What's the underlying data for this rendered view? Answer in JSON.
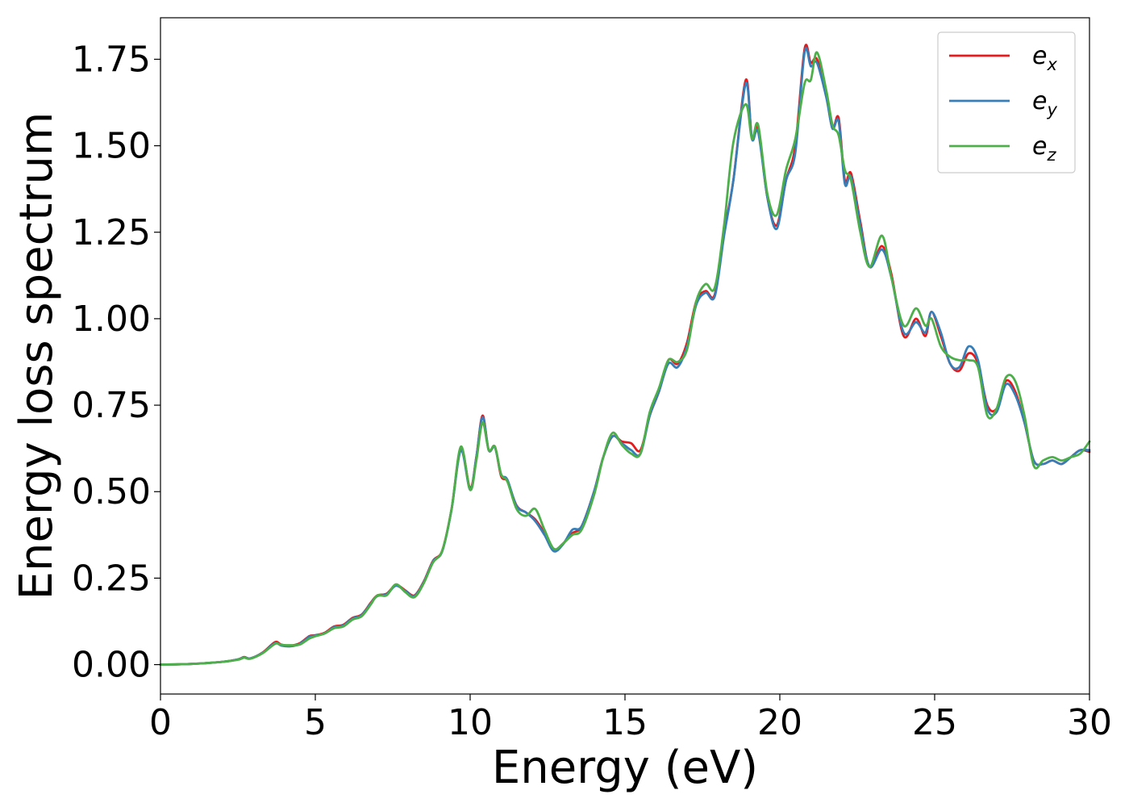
{
  "chart_data": {
    "type": "line",
    "title": "",
    "xlabel": "Energy (eV)",
    "ylabel": "Energy loss spectrum",
    "xlim": [
      0,
      30
    ],
    "ylim": [
      -0.085,
      1.87
    ],
    "xticks": [
      0,
      5,
      10,
      15,
      20,
      25,
      30
    ],
    "xtick_labels": [
      "0",
      "5",
      "10",
      "15",
      "20",
      "25",
      "30"
    ],
    "yticks": [
      0,
      0.25,
      0.5,
      0.75,
      1.0,
      1.25,
      1.5,
      1.75
    ],
    "ytick_labels": [
      "0.00",
      "0.25",
      "0.50",
      "0.75",
      "1.00",
      "1.25",
      "1.50",
      "1.75"
    ],
    "grid": false,
    "legend_position": "top-right",
    "series": [
      {
        "name": "e_x",
        "label_base": "e",
        "label_sub": "x",
        "color": "#e41a1c",
        "x": [
          0,
          1,
          2,
          2.5,
          2.7,
          2.9,
          3.3,
          3.7,
          3.9,
          4.2,
          4.5,
          4.8,
          5.0,
          5.3,
          5.6,
          5.9,
          6.2,
          6.5,
          6.8,
          7.0,
          7.3,
          7.6,
          7.9,
          8.2,
          8.5,
          8.8,
          9.1,
          9.4,
          9.7,
          10.0,
          10.2,
          10.4,
          10.6,
          10.8,
          11.0,
          11.2,
          11.5,
          11.8,
          12.1,
          12.4,
          12.7,
          13.0,
          13.3,
          13.6,
          14.0,
          14.3,
          14.6,
          14.9,
          15.2,
          15.5,
          15.8,
          16.1,
          16.4,
          16.7,
          17.0,
          17.3,
          17.6,
          17.9,
          18.2,
          18.5,
          18.9,
          19.1,
          19.3,
          19.6,
          19.9,
          20.2,
          20.5,
          20.8,
          21.0,
          21.2,
          21.5,
          21.7,
          21.9,
          22.1,
          22.3,
          22.6,
          22.9,
          23.3,
          23.6,
          24.0,
          24.4,
          24.7,
          24.9,
          25.2,
          25.5,
          25.8,
          26.1,
          26.4,
          26.7,
          27.0,
          27.3,
          27.6,
          27.9,
          28.2,
          28.5,
          28.8,
          29.1,
          29.4,
          29.7,
          30.0
        ],
        "values": [
          0.0,
          0.002,
          0.008,
          0.015,
          0.022,
          0.018,
          0.035,
          0.065,
          0.058,
          0.055,
          0.062,
          0.082,
          0.085,
          0.092,
          0.11,
          0.115,
          0.135,
          0.145,
          0.18,
          0.2,
          0.205,
          0.23,
          0.215,
          0.2,
          0.24,
          0.3,
          0.33,
          0.45,
          0.625,
          0.51,
          0.6,
          0.72,
          0.62,
          0.63,
          0.545,
          0.53,
          0.46,
          0.44,
          0.42,
          0.38,
          0.33,
          0.35,
          0.38,
          0.4,
          0.5,
          0.6,
          0.66,
          0.645,
          0.64,
          0.62,
          0.72,
          0.79,
          0.88,
          0.87,
          0.93,
          1.05,
          1.08,
          1.07,
          1.25,
          1.4,
          1.69,
          1.52,
          1.55,
          1.35,
          1.27,
          1.4,
          1.5,
          1.78,
          1.74,
          1.75,
          1.65,
          1.55,
          1.58,
          1.4,
          1.42,
          1.28,
          1.15,
          1.21,
          1.13,
          0.95,
          1.0,
          0.95,
          1.02,
          0.95,
          0.87,
          0.85,
          0.9,
          0.87,
          0.75,
          0.74,
          0.82,
          0.79,
          0.7,
          0.59,
          0.58,
          0.59,
          0.58,
          0.6,
          0.62,
          0.615
        ]
      },
      {
        "name": "e_y",
        "label_base": "e",
        "label_sub": "y",
        "color": "#377eb8",
        "x": [
          0,
          1,
          2,
          2.5,
          2.7,
          2.9,
          3.3,
          3.7,
          3.9,
          4.2,
          4.5,
          4.8,
          5.0,
          5.3,
          5.6,
          5.9,
          6.2,
          6.5,
          6.8,
          7.0,
          7.3,
          7.6,
          7.9,
          8.2,
          8.5,
          8.8,
          9.1,
          9.4,
          9.7,
          10.0,
          10.2,
          10.4,
          10.6,
          10.8,
          11.0,
          11.2,
          11.5,
          11.8,
          12.1,
          12.4,
          12.7,
          13.0,
          13.3,
          13.6,
          14.0,
          14.3,
          14.6,
          14.9,
          15.2,
          15.5,
          15.8,
          16.1,
          16.4,
          16.7,
          17.0,
          17.3,
          17.6,
          17.9,
          18.2,
          18.5,
          18.9,
          19.1,
          19.3,
          19.6,
          19.9,
          20.2,
          20.5,
          20.8,
          21.0,
          21.2,
          21.5,
          21.7,
          21.9,
          22.1,
          22.3,
          22.6,
          22.9,
          23.3,
          23.6,
          24.0,
          24.4,
          24.7,
          24.9,
          25.2,
          25.5,
          25.8,
          26.1,
          26.4,
          26.7,
          27.0,
          27.3,
          27.6,
          27.9,
          28.2,
          28.5,
          28.8,
          29.1,
          29.4,
          29.7,
          30.0
        ],
        "values": [
          0.0,
          0.002,
          0.008,
          0.015,
          0.021,
          0.018,
          0.034,
          0.062,
          0.055,
          0.053,
          0.06,
          0.08,
          0.084,
          0.09,
          0.108,
          0.113,
          0.133,
          0.143,
          0.178,
          0.198,
          0.203,
          0.228,
          0.213,
          0.198,
          0.238,
          0.298,
          0.328,
          0.448,
          0.62,
          0.505,
          0.6,
          0.715,
          0.62,
          0.628,
          0.55,
          0.535,
          0.458,
          0.44,
          0.415,
          0.375,
          0.328,
          0.348,
          0.39,
          0.4,
          0.5,
          0.6,
          0.66,
          0.64,
          0.62,
          0.61,
          0.72,
          0.79,
          0.87,
          0.86,
          0.92,
          1.04,
          1.075,
          1.065,
          1.24,
          1.4,
          1.68,
          1.52,
          1.54,
          1.35,
          1.26,
          1.4,
          1.48,
          1.77,
          1.73,
          1.74,
          1.64,
          1.55,
          1.57,
          1.39,
          1.41,
          1.27,
          1.15,
          1.2,
          1.12,
          0.96,
          0.99,
          0.96,
          1.02,
          0.96,
          0.87,
          0.86,
          0.92,
          0.88,
          0.74,
          0.73,
          0.81,
          0.78,
          0.7,
          0.59,
          0.58,
          0.59,
          0.58,
          0.6,
          0.62,
          0.62
        ]
      },
      {
        "name": "e_z",
        "label_base": "e",
        "label_sub": "z",
        "color": "#4daf4a",
        "x": [
          0,
          1,
          2,
          2.5,
          2.7,
          2.9,
          3.3,
          3.7,
          3.9,
          4.2,
          4.5,
          4.8,
          5.0,
          5.3,
          5.6,
          5.9,
          6.2,
          6.5,
          6.8,
          7.0,
          7.3,
          7.6,
          7.9,
          8.2,
          8.5,
          8.8,
          9.1,
          9.4,
          9.7,
          10.0,
          10.2,
          10.4,
          10.6,
          10.8,
          11.0,
          11.2,
          11.5,
          11.8,
          12.1,
          12.4,
          12.7,
          13.0,
          13.3,
          13.6,
          14.0,
          14.3,
          14.6,
          14.9,
          15.2,
          15.5,
          15.8,
          16.1,
          16.4,
          16.7,
          17.0,
          17.3,
          17.6,
          17.9,
          18.2,
          18.5,
          18.9,
          19.1,
          19.3,
          19.6,
          19.9,
          20.2,
          20.5,
          20.8,
          21.0,
          21.2,
          21.5,
          21.7,
          21.9,
          22.1,
          22.3,
          22.6,
          22.9,
          23.3,
          23.6,
          24.0,
          24.4,
          24.7,
          24.9,
          25.2,
          25.5,
          25.8,
          26.1,
          26.4,
          26.7,
          27.0,
          27.3,
          27.6,
          27.9,
          28.2,
          28.5,
          28.8,
          29.1,
          29.4,
          29.7,
          30.0
        ],
        "values": [
          0.0,
          0.002,
          0.008,
          0.014,
          0.02,
          0.017,
          0.033,
          0.06,
          0.057,
          0.056,
          0.058,
          0.075,
          0.082,
          0.09,
          0.105,
          0.11,
          0.13,
          0.14,
          0.175,
          0.2,
          0.2,
          0.232,
          0.21,
          0.195,
          0.235,
          0.295,
          0.33,
          0.45,
          0.63,
          0.505,
          0.59,
          0.7,
          0.62,
          0.63,
          0.55,
          0.53,
          0.45,
          0.43,
          0.45,
          0.39,
          0.335,
          0.35,
          0.375,
          0.39,
          0.49,
          0.6,
          0.67,
          0.635,
          0.61,
          0.61,
          0.73,
          0.8,
          0.88,
          0.875,
          0.91,
          1.05,
          1.1,
          1.09,
          1.27,
          1.51,
          1.62,
          1.52,
          1.56,
          1.36,
          1.3,
          1.43,
          1.52,
          1.68,
          1.69,
          1.77,
          1.66,
          1.56,
          1.53,
          1.43,
          1.4,
          1.25,
          1.15,
          1.24,
          1.12,
          0.98,
          1.03,
          0.98,
          1.0,
          0.92,
          0.89,
          0.88,
          0.88,
          0.86,
          0.72,
          0.74,
          0.83,
          0.82,
          0.72,
          0.575,
          0.59,
          0.6,
          0.59,
          0.6,
          0.61,
          0.645
        ]
      }
    ]
  }
}
